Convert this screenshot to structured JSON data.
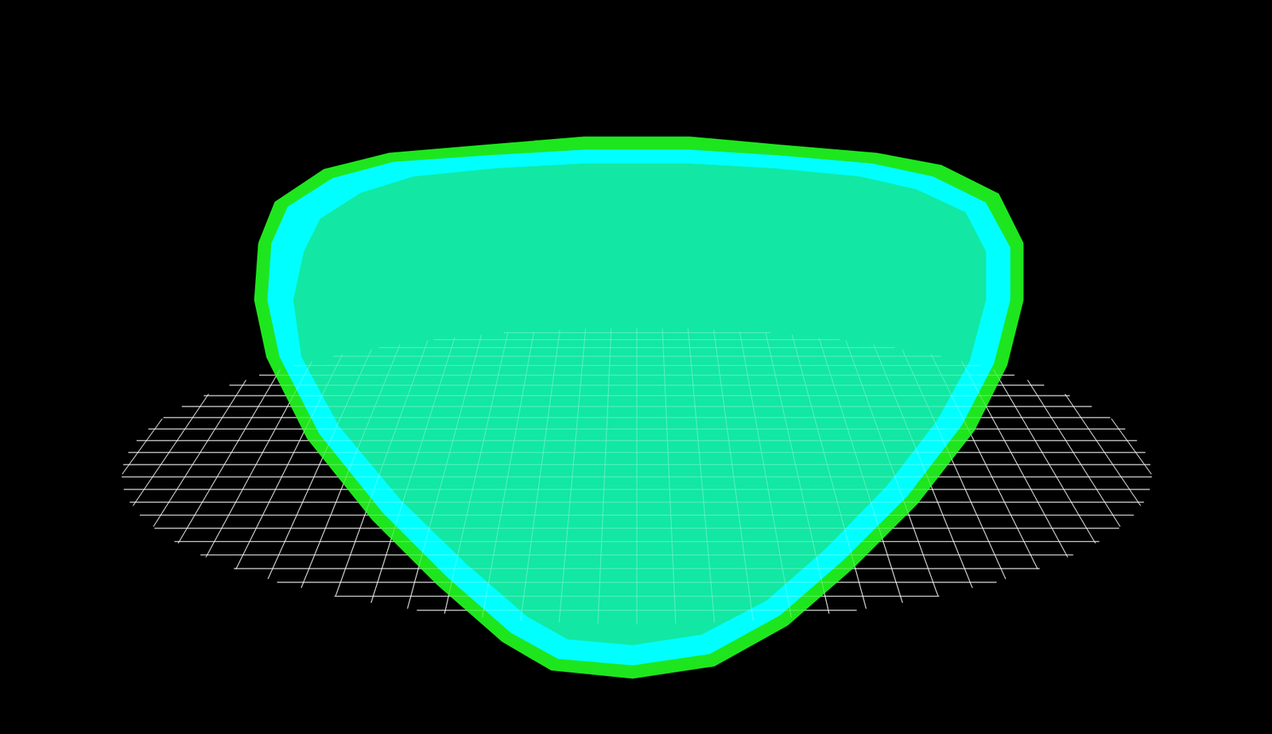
{
  "chart_data": {
    "type": "area",
    "xlim": [
      0,
      1568
    ],
    "ylim": [
      0,
      905
    ],
    "grid": false,
    "tick_labels": false,
    "series": [
      {
        "color": "#1ee61e",
        "x": [
          320,
          340,
          400,
          480,
          600,
          720,
          850,
          960,
          1080,
          1160,
          1230,
          1260,
          1260,
          1240,
          1200,
          1130,
          1050,
          970,
          880,
          780,
          680,
          620,
          540,
          460,
          380,
          330,
          315
        ],
        "values": [
          605,
          655,
          695,
          715,
          725,
          735,
          735,
          725,
          715,
          700,
          665,
          605,
          535,
          455,
          375,
          285,
          205,
          135,
          85,
          70,
          80,
          115,
          185,
          265,
          365,
          465,
          535
        ]
      },
      {
        "color": "#00ffff",
        "x": [
          335,
          355,
          410,
          485,
          600,
          720,
          850,
          960,
          1075,
          1150,
          1215,
          1245,
          1245,
          1225,
          1185,
          1118,
          1040,
          962,
          875,
          780,
          688,
          630,
          552,
          472,
          394,
          345,
          330
        ],
        "values": [
          605,
          650,
          685,
          705,
          713,
          720,
          720,
          713,
          703,
          687,
          655,
          600,
          535,
          457,
          380,
          293,
          215,
          147,
          99,
          85,
          93,
          125,
          193,
          273,
          370,
          465,
          535
        ]
      },
      {
        "color": "#14e69a",
        "x": [
          375,
          395,
          445,
          510,
          610,
          720,
          850,
          955,
          1060,
          1130,
          1190,
          1215,
          1215,
          1195,
          1155,
          1092,
          1018,
          945,
          865,
          780,
          700,
          650,
          575,
          495,
          418,
          372,
          362
        ],
        "values": [
          595,
          635,
          667,
          687,
          697,
          703,
          703,
          697,
          687,
          671,
          643,
          595,
          535,
          460,
          387,
          305,
          229,
          165,
          123,
          110,
          117,
          145,
          210,
          288,
          380,
          465,
          535
        ]
      }
    ]
  }
}
